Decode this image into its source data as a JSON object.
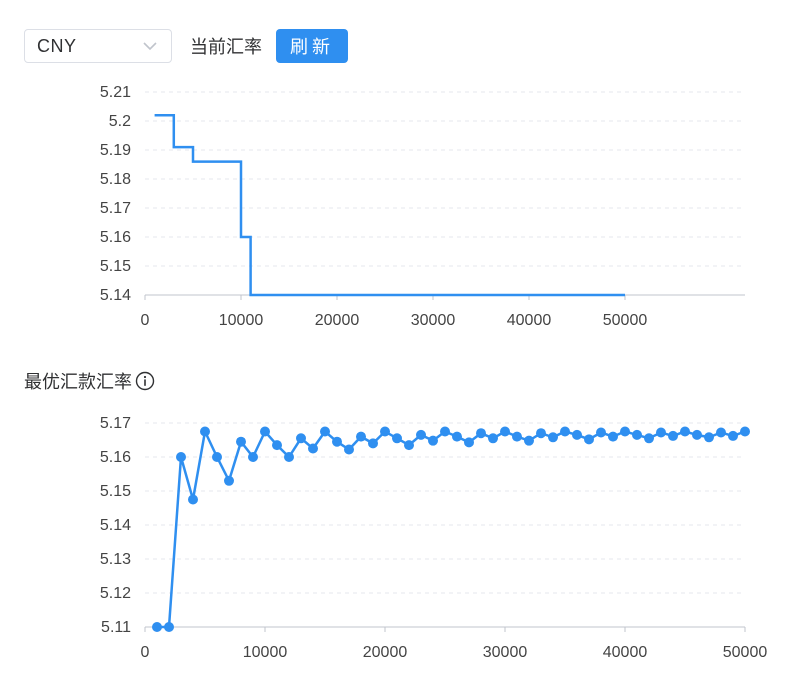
{
  "toolbar": {
    "currency_select": {
      "value": "CNY",
      "icon": "chevron-down-icon"
    },
    "current_rate_label": "当前汇率",
    "refresh_label": "刷新"
  },
  "best_rate_section": {
    "title": "最优汇款汇率",
    "icon": "info-icon"
  },
  "colors": {
    "accent": "#2f8ff0",
    "grid": "#e4e7ed",
    "axis": "#c0c4cc"
  },
  "chart_data": [
    {
      "type": "line",
      "step": true,
      "grid": "horizontal-dashed",
      "xlim": [
        0,
        62500
      ],
      "ylim": [
        5.14,
        5.21
      ],
      "xticks": [
        0,
        10000,
        20000,
        30000,
        40000,
        50000
      ],
      "yticks": [
        5.14,
        5.15,
        5.16,
        5.17,
        5.18,
        5.19,
        5.2,
        5.21
      ],
      "ytick_labels": [
        "5.14",
        "5.15",
        "5.16",
        "5.17",
        "5.18",
        "5.19",
        "5.2",
        "5.21"
      ],
      "series": [
        {
          "x": [
            1000,
            3000,
            5000,
            10000,
            11000,
            50000
          ],
          "values": [
            5.202,
            5.191,
            5.186,
            5.16,
            5.14,
            5.14
          ]
        }
      ]
    },
    {
      "type": "line",
      "markers": true,
      "grid": "horizontal-dashed",
      "xlim": [
        0,
        50000
      ],
      "ylim": [
        5.11,
        5.17
      ],
      "xticks": [
        0,
        10000,
        20000,
        30000,
        40000,
        50000
      ],
      "yticks": [
        5.11,
        5.12,
        5.13,
        5.14,
        5.15,
        5.16,
        5.17
      ],
      "ytick_labels": [
        "5.11",
        "5.12",
        "5.13",
        "5.14",
        "5.15",
        "5.16",
        "5.17"
      ],
      "series": [
        {
          "x": [
            1000,
            2000,
            3000,
            4000,
            5000,
            6000,
            7000,
            8000,
            9000,
            10000,
            11000,
            12000,
            13000,
            14000,
            15000,
            16000,
            17000,
            18000,
            19000,
            20000,
            21000,
            22000,
            23000,
            24000,
            25000,
            26000,
            27000,
            28000,
            29000,
            30000,
            31000,
            32000,
            33000,
            34000,
            35000,
            36000,
            37000,
            38000,
            39000,
            40000,
            41000,
            42000,
            43000,
            44000,
            45000,
            46000,
            47000,
            48000,
            49000,
            50000
          ],
          "values": [
            5.11,
            5.11,
            5.16,
            5.1475,
            5.1675,
            5.16,
            5.153,
            5.1645,
            5.16,
            5.1675,
            5.1635,
            5.16,
            5.1655,
            5.1625,
            5.1675,
            5.1645,
            5.1622,
            5.166,
            5.164,
            5.1675,
            5.1655,
            5.1635,
            5.1665,
            5.1648,
            5.1675,
            5.166,
            5.1643,
            5.167,
            5.1655,
            5.1675,
            5.166,
            5.1648,
            5.167,
            5.1658,
            5.1675,
            5.1665,
            5.1652,
            5.1672,
            5.166,
            5.1675,
            5.1665,
            5.1655,
            5.1672,
            5.1662,
            5.1675,
            5.1665,
            5.1658,
            5.1672,
            5.1662,
            5.1675
          ]
        }
      ]
    }
  ]
}
